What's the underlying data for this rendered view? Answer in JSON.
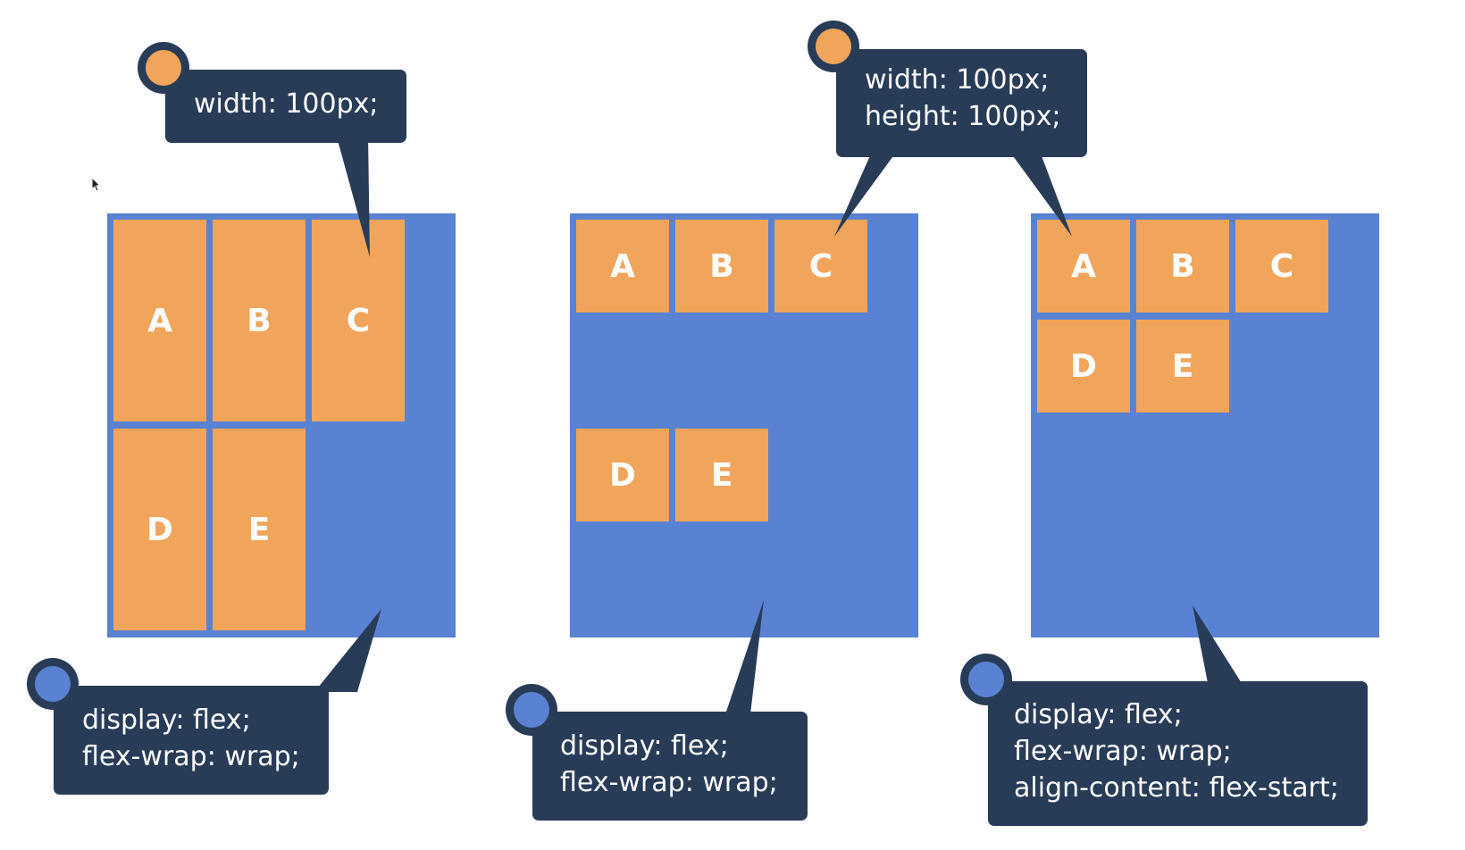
{
  "colors": {
    "container": "#5a82d2",
    "item": "#f0a55a",
    "callout": "#283c57",
    "orange_dot": "#f0a55a",
    "blue_dot": "#5a82d2",
    "text": "#ffffff"
  },
  "panels": [
    {
      "items": [
        "A",
        "B",
        "C",
        "D",
        "E"
      ],
      "item_css": {
        "dot": "orange-dot-icon",
        "lines": [
          "width: 100px;"
        ]
      },
      "container_css": {
        "dot": "blue-dot-icon",
        "lines": [
          "display: flex;",
          "flex-wrap: wrap;"
        ]
      }
    },
    {
      "items": [
        "A",
        "B",
        "C",
        "D",
        "E"
      ],
      "container_css": {
        "dot": "blue-dot-icon",
        "lines": [
          "display: flex;",
          "flex-wrap: wrap;"
        ]
      }
    },
    {
      "items": [
        "A",
        "B",
        "C",
        "D",
        "E"
      ],
      "container_css": {
        "dot": "blue-dot-icon",
        "lines": [
          "display: flex;",
          "flex-wrap: wrap;",
          "align-content: flex-start;"
        ]
      }
    }
  ],
  "shared_item_css": {
    "dot": "orange-dot-icon",
    "lines": [
      "width: 100px;",
      "height: 100px;"
    ]
  }
}
